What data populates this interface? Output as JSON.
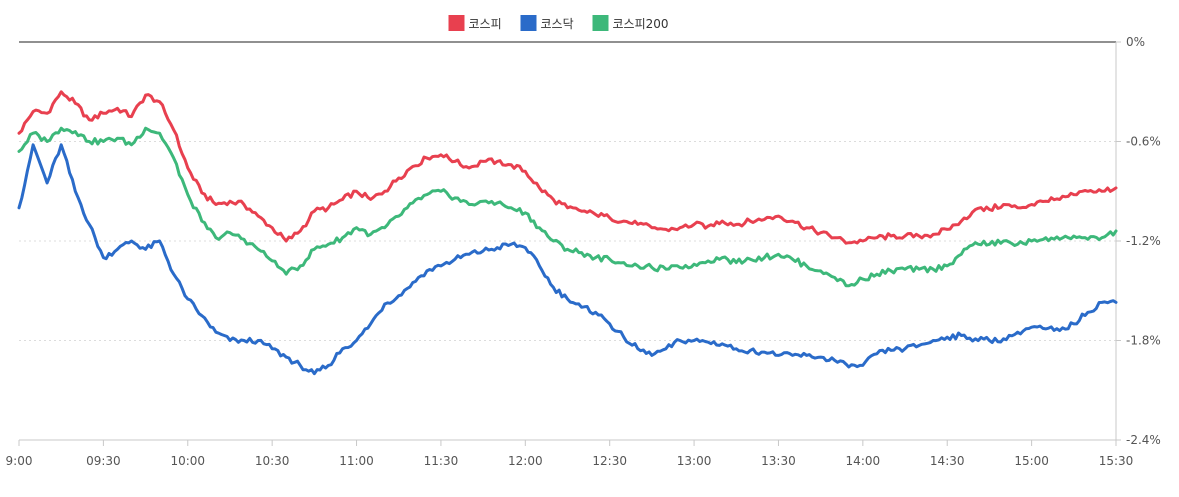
{
  "chart_data": {
    "type": "line",
    "title": "",
    "legend": {
      "placement": "top-center"
    },
    "x_ticks": [
      "9:00",
      "09:30",
      "10:00",
      "10:30",
      "11:00",
      "11:30",
      "12:00",
      "12:30",
      "13:00",
      "13:30",
      "14:00",
      "14:30",
      "15:00",
      "15:30"
    ],
    "y_ticks": [
      "0%",
      "-0.6%",
      "-1.2%",
      "-1.8%",
      "-2.4%"
    ],
    "y_tick_values": [
      0,
      -0.6,
      -1.2,
      -1.8,
      -2.4
    ],
    "ylim": [
      -2.4,
      0
    ],
    "xlim": [
      "9:00",
      "15:30"
    ],
    "grid": {
      "y": true,
      "style": "dotted"
    },
    "series": [
      {
        "name": "코스피",
        "color": "#e8404f",
        "points": [
          [
            "9:00",
            -0.55
          ],
          [
            "9:05",
            -0.42
          ],
          [
            "9:10",
            -0.43
          ],
          [
            "9:15",
            -0.3
          ],
          [
            "9:20",
            -0.37
          ],
          [
            "9:25",
            -0.47
          ],
          [
            "9:30",
            -0.43
          ],
          [
            "9:35",
            -0.4
          ],
          [
            "9:40",
            -0.45
          ],
          [
            "9:45",
            -0.32
          ],
          [
            "9:50",
            -0.36
          ],
          [
            "9:55",
            -0.53
          ],
          [
            "10:00",
            -0.76
          ],
          [
            "10:05",
            -0.91
          ],
          [
            "10:10",
            -0.98
          ],
          [
            "10:15",
            -0.96
          ],
          [
            "10:20",
            -0.98
          ],
          [
            "10:25",
            -1.05
          ],
          [
            "10:30",
            -1.12
          ],
          [
            "10:35",
            -1.2
          ],
          [
            "10:40",
            -1.14
          ],
          [
            "10:45",
            -1.02
          ],
          [
            "10:50",
            -1.0
          ],
          [
            "10:55",
            -0.95
          ],
          [
            "11:00",
            -0.9
          ],
          [
            "11:05",
            -0.95
          ],
          [
            "11:10",
            -0.9
          ],
          [
            "11:15",
            -0.82
          ],
          [
            "11:20",
            -0.75
          ],
          [
            "11:25",
            -0.7
          ],
          [
            "11:30",
            -0.68
          ],
          [
            "11:35",
            -0.72
          ],
          [
            "11:40",
            -0.76
          ],
          [
            "11:45",
            -0.72
          ],
          [
            "11:50",
            -0.72
          ],
          [
            "11:55",
            -0.74
          ],
          [
            "12:00",
            -0.78
          ],
          [
            "12:05",
            -0.88
          ],
          [
            "12:10",
            -0.95
          ],
          [
            "12:15",
            -1.0
          ],
          [
            "12:20",
            -1.02
          ],
          [
            "12:25",
            -1.04
          ],
          [
            "12:30",
            -1.06
          ],
          [
            "12:35",
            -1.08
          ],
          [
            "12:40",
            -1.1
          ],
          [
            "12:45",
            -1.12
          ],
          [
            "12:50",
            -1.13
          ],
          [
            "12:55",
            -1.12
          ],
          [
            "13:00",
            -1.1
          ],
          [
            "13:05",
            -1.11
          ],
          [
            "13:10",
            -1.08
          ],
          [
            "13:15",
            -1.1
          ],
          [
            "13:20",
            -1.08
          ],
          [
            "13:25",
            -1.07
          ],
          [
            "13:30",
            -1.05
          ],
          [
            "13:35",
            -1.08
          ],
          [
            "13:40",
            -1.12
          ],
          [
            "13:45",
            -1.15
          ],
          [
            "13:50",
            -1.18
          ],
          [
            "13:55",
            -1.21
          ],
          [
            "14:00",
            -1.2
          ],
          [
            "14:05",
            -1.18
          ],
          [
            "14:10",
            -1.17
          ],
          [
            "14:15",
            -1.17
          ],
          [
            "14:20",
            -1.17
          ],
          [
            "14:25",
            -1.16
          ],
          [
            "14:30",
            -1.13
          ],
          [
            "14:35",
            -1.08
          ],
          [
            "14:40",
            -1.01
          ],
          [
            "14:45",
            -1.01
          ],
          [
            "14:50",
            -0.98
          ],
          [
            "14:55",
            -1.0
          ],
          [
            "15:00",
            -0.98
          ],
          [
            "15:05",
            -0.96
          ],
          [
            "15:10",
            -0.95
          ],
          [
            "15:15",
            -0.92
          ],
          [
            "15:20",
            -0.9
          ],
          [
            "15:25",
            -0.9
          ],
          [
            "15:30",
            -0.88
          ]
        ]
      },
      {
        "name": "코스닥",
        "color": "#2a6bc9",
        "points": [
          [
            "9:00",
            -1.0
          ],
          [
            "9:05",
            -0.62
          ],
          [
            "9:10",
            -0.85
          ],
          [
            "9:15",
            -0.62
          ],
          [
            "9:20",
            -0.9
          ],
          [
            "9:25",
            -1.1
          ],
          [
            "9:30",
            -1.3
          ],
          [
            "9:35",
            -1.25
          ],
          [
            "9:40",
            -1.2
          ],
          [
            "9:45",
            -1.25
          ],
          [
            "9:50",
            -1.2
          ],
          [
            "9:55",
            -1.4
          ],
          [
            "10:00",
            -1.55
          ],
          [
            "10:05",
            -1.65
          ],
          [
            "10:10",
            -1.75
          ],
          [
            "10:15",
            -1.8
          ],
          [
            "10:20",
            -1.8
          ],
          [
            "10:25",
            -1.8
          ],
          [
            "10:30",
            -1.85
          ],
          [
            "10:35",
            -1.9
          ],
          [
            "10:40",
            -1.95
          ],
          [
            "10:45",
            -2.0
          ],
          [
            "10:50",
            -1.95
          ],
          [
            "10:55",
            -1.85
          ],
          [
            "11:00",
            -1.8
          ],
          [
            "11:05",
            -1.7
          ],
          [
            "11:10",
            -1.58
          ],
          [
            "11:15",
            -1.53
          ],
          [
            "11:20",
            -1.45
          ],
          [
            "11:25",
            -1.38
          ],
          [
            "11:30",
            -1.35
          ],
          [
            "11:35",
            -1.31
          ],
          [
            "11:40",
            -1.28
          ],
          [
            "11:45",
            -1.26
          ],
          [
            "11:50",
            -1.24
          ],
          [
            "11:55",
            -1.22
          ],
          [
            "12:00",
            -1.24
          ],
          [
            "12:05",
            -1.35
          ],
          [
            "12:10",
            -1.48
          ],
          [
            "12:15",
            -1.55
          ],
          [
            "12:20",
            -1.6
          ],
          [
            "12:25",
            -1.63
          ],
          [
            "12:30",
            -1.7
          ],
          [
            "12:35",
            -1.78
          ],
          [
            "12:40",
            -1.85
          ],
          [
            "12:45",
            -1.89
          ],
          [
            "12:50",
            -1.85
          ],
          [
            "12:55",
            -1.8
          ],
          [
            "13:00",
            -1.8
          ],
          [
            "13:05",
            -1.81
          ],
          [
            "13:10",
            -1.82
          ],
          [
            "13:15",
            -1.85
          ],
          [
            "13:20",
            -1.86
          ],
          [
            "13:25",
            -1.87
          ],
          [
            "13:30",
            -1.89
          ],
          [
            "13:35",
            -1.89
          ],
          [
            "13:40",
            -1.89
          ],
          [
            "13:45",
            -1.9
          ],
          [
            "13:50",
            -1.92
          ],
          [
            "13:55",
            -1.96
          ],
          [
            "14:00",
            -1.95
          ],
          [
            "14:05",
            -1.88
          ],
          [
            "14:10",
            -1.86
          ],
          [
            "14:15",
            -1.85
          ],
          [
            "14:20",
            -1.83
          ],
          [
            "14:25",
            -1.8
          ],
          [
            "14:30",
            -1.78
          ],
          [
            "14:35",
            -1.77
          ],
          [
            "14:40",
            -1.79
          ],
          [
            "14:45",
            -1.8
          ],
          [
            "14:50",
            -1.79
          ],
          [
            "14:55",
            -1.75
          ],
          [
            "15:00",
            -1.72
          ],
          [
            "15:05",
            -1.73
          ],
          [
            "15:10",
            -1.74
          ],
          [
            "15:15",
            -1.7
          ],
          [
            "15:20",
            -1.63
          ],
          [
            "15:25",
            -1.57
          ],
          [
            "15:30",
            -1.57
          ]
        ]
      },
      {
        "name": "코스피200",
        "color": "#3db87a",
        "points": [
          [
            "9:00",
            -0.66
          ],
          [
            "9:05",
            -0.55
          ],
          [
            "9:10",
            -0.6
          ],
          [
            "9:15",
            -0.52
          ],
          [
            "9:20",
            -0.54
          ],
          [
            "9:25",
            -0.6
          ],
          [
            "9:30",
            -0.6
          ],
          [
            "9:35",
            -0.58
          ],
          [
            "9:40",
            -0.62
          ],
          [
            "9:45",
            -0.52
          ],
          [
            "9:50",
            -0.55
          ],
          [
            "9:55",
            -0.7
          ],
          [
            "10:00",
            -0.92
          ],
          [
            "10:05",
            -1.08
          ],
          [
            "10:10",
            -1.18
          ],
          [
            "10:15",
            -1.15
          ],
          [
            "10:20",
            -1.19
          ],
          [
            "10:25",
            -1.25
          ],
          [
            "10:30",
            -1.32
          ],
          [
            "10:35",
            -1.4
          ],
          [
            "10:40",
            -1.35
          ],
          [
            "10:45",
            -1.25
          ],
          [
            "10:50",
            -1.22
          ],
          [
            "10:55",
            -1.18
          ],
          [
            "11:00",
            -1.12
          ],
          [
            "11:05",
            -1.16
          ],
          [
            "11:10",
            -1.12
          ],
          [
            "11:15",
            -1.05
          ],
          [
            "11:20",
            -0.97
          ],
          [
            "11:25",
            -0.92
          ],
          [
            "11:30",
            -0.9
          ],
          [
            "11:35",
            -0.94
          ],
          [
            "11:40",
            -0.98
          ],
          [
            "11:45",
            -0.96
          ],
          [
            "11:50",
            -0.97
          ],
          [
            "11:55",
            -1.0
          ],
          [
            "12:00",
            -1.03
          ],
          [
            "12:05",
            -1.12
          ],
          [
            "12:10",
            -1.2
          ],
          [
            "12:15",
            -1.25
          ],
          [
            "12:20",
            -1.27
          ],
          [
            "12:25",
            -1.3
          ],
          [
            "12:30",
            -1.31
          ],
          [
            "12:35",
            -1.33
          ],
          [
            "12:40",
            -1.35
          ],
          [
            "12:45",
            -1.36
          ],
          [
            "12:50",
            -1.37
          ],
          [
            "12:55",
            -1.36
          ],
          [
            "13:00",
            -1.34
          ],
          [
            "13:05",
            -1.32
          ],
          [
            "13:10",
            -1.3
          ],
          [
            "13:15",
            -1.33
          ],
          [
            "13:20",
            -1.31
          ],
          [
            "13:25",
            -1.3
          ],
          [
            "13:30",
            -1.28
          ],
          [
            "13:35",
            -1.31
          ],
          [
            "13:40",
            -1.35
          ],
          [
            "13:45",
            -1.38
          ],
          [
            "13:50",
            -1.42
          ],
          [
            "13:55",
            -1.47
          ],
          [
            "14:00",
            -1.43
          ],
          [
            "14:05",
            -1.4
          ],
          [
            "14:10",
            -1.38
          ],
          [
            "14:15",
            -1.37
          ],
          [
            "14:20",
            -1.37
          ],
          [
            "14:25",
            -1.37
          ],
          [
            "14:30",
            -1.35
          ],
          [
            "14:35",
            -1.28
          ],
          [
            "14:40",
            -1.21
          ],
          [
            "14:45",
            -1.22
          ],
          [
            "14:50",
            -1.2
          ],
          [
            "14:55",
            -1.22
          ],
          [
            "15:00",
            -1.2
          ],
          [
            "15:05",
            -1.18
          ],
          [
            "15:10",
            -1.19
          ],
          [
            "15:15",
            -1.17
          ],
          [
            "15:20",
            -1.19
          ],
          [
            "15:25",
            -1.18
          ],
          [
            "15:30",
            -1.14
          ]
        ]
      }
    ]
  }
}
